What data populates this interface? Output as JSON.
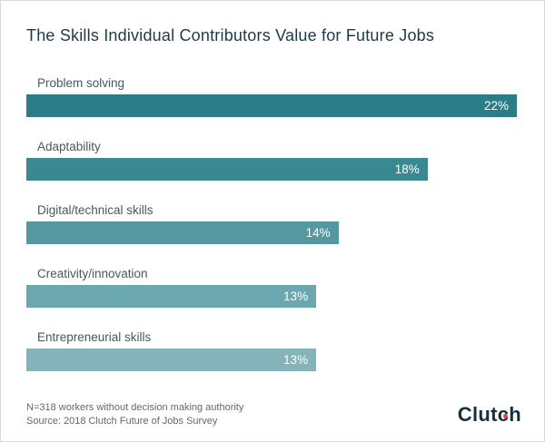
{
  "title": "The Skills Individual Contributors Value for Future Jobs",
  "chart_data": {
    "type": "bar",
    "orientation": "horizontal",
    "title": "The Skills Individual Contributors Value for Future Jobs",
    "categories": [
      "Problem solving",
      "Adaptability",
      "Digital/technical skills",
      "Creativity/innovation",
      "Entrepreneurial skills"
    ],
    "values": [
      22,
      18,
      14,
      13,
      13
    ],
    "value_labels": [
      "22%",
      "18%",
      "14%",
      "13%",
      "13%"
    ],
    "xlim": [
      0,
      22
    ],
    "grid": false,
    "legend": false,
    "bar_colors": [
      "#297c88",
      "#3a8892",
      "#5698a0",
      "#6ba7af",
      "#85b3ba"
    ],
    "value_label_color": "#ffffff",
    "category_label_color": "#47585f"
  },
  "footer": {
    "line1": "N=318 workers without decision making authority",
    "line2": "Source: 2018 Clutch Future of Jobs Survey"
  },
  "brand": {
    "name": "Clutch",
    "logo_color": "#16313c",
    "dot_color": "#e8412c"
  }
}
